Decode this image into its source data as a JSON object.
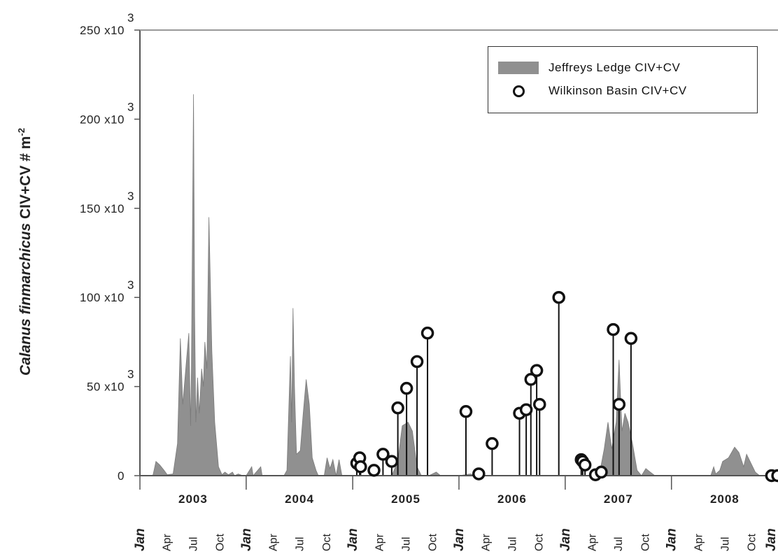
{
  "chart_data": {
    "type": "area",
    "ylabel": "Calanus finmarchicus CIV+CV # m-2",
    "ylabel_species": "Calanus finmarchicus",
    "ylabel_rest": " CIV+CV # m",
    "ylabel_exp": "-2",
    "ylim": [
      0,
      250000
    ],
    "yticks": [
      {
        "value": 0,
        "base": "0",
        "exp": ""
      },
      {
        "value": 50000,
        "base": "50 x10",
        "exp": "3"
      },
      {
        "value": 100000,
        "base": "100 x10",
        "exp": "3"
      },
      {
        "value": 150000,
        "base": "150 x10",
        "exp": "3"
      },
      {
        "value": 200000,
        "base": "200 x10",
        "exp": "3"
      },
      {
        "value": 250000,
        "base": "250 x10",
        "exp": "3"
      }
    ],
    "xlim": [
      "2003-01-01",
      "2009-01-01"
    ],
    "years": [
      "2003",
      "2004",
      "2005",
      "2006",
      "2007",
      "2008"
    ],
    "month_labels": [
      "Jan",
      "Apr",
      "Jul",
      "Oct"
    ],
    "last_label": "Jan",
    "legend_position": "top-right",
    "series": [
      {
        "name": "Jeffreys Ledge CIV+CV",
        "type": "area",
        "color": "#909090",
        "points": [
          [
            "2003-01-01",
            0
          ],
          [
            "2003-02-01",
            0
          ],
          [
            "2003-02-15",
            300
          ],
          [
            "2003-02-25",
            8000
          ],
          [
            "2003-03-10",
            6000
          ],
          [
            "2003-03-25",
            3000
          ],
          [
            "2003-04-05",
            500
          ],
          [
            "2003-04-25",
            1000
          ],
          [
            "2003-05-10",
            18000
          ],
          [
            "2003-05-20",
            77000
          ],
          [
            "2003-05-28",
            40000
          ],
          [
            "2003-06-10",
            65000
          ],
          [
            "2003-06-18",
            80000
          ],
          [
            "2003-06-24",
            28000
          ],
          [
            "2003-06-27",
            60000
          ],
          [
            "2003-07-04",
            214000
          ],
          [
            "2003-07-08",
            90000
          ],
          [
            "2003-07-12",
            30000
          ],
          [
            "2003-07-18",
            55000
          ],
          [
            "2003-07-24",
            35000
          ],
          [
            "2003-08-01",
            60000
          ],
          [
            "2003-08-07",
            50000
          ],
          [
            "2003-08-12",
            75000
          ],
          [
            "2003-08-19",
            60000
          ],
          [
            "2003-08-26",
            145000
          ],
          [
            "2003-09-05",
            70000
          ],
          [
            "2003-09-15",
            30000
          ],
          [
            "2003-09-28",
            5000
          ],
          [
            "2003-10-10",
            500
          ],
          [
            "2003-10-20",
            2000
          ],
          [
            "2003-11-01",
            500
          ],
          [
            "2003-11-15",
            2000
          ],
          [
            "2003-11-22",
            0
          ],
          [
            "2003-12-05",
            1000
          ],
          [
            "2003-12-20",
            0
          ],
          [
            "2004-01-01",
            0
          ],
          [
            "2004-01-20",
            5000
          ],
          [
            "2004-01-25",
            0
          ],
          [
            "2004-02-20",
            5000
          ],
          [
            "2004-02-25",
            0
          ],
          [
            "2004-04-01",
            0
          ],
          [
            "2004-05-10",
            0
          ],
          [
            "2004-05-20",
            3000
          ],
          [
            "2004-06-01",
            67000
          ],
          [
            "2004-06-05",
            30000
          ],
          [
            "2004-06-10",
            94000
          ],
          [
            "2004-06-15",
            50000
          ],
          [
            "2004-06-22",
            12000
          ],
          [
            "2004-07-05",
            14000
          ],
          [
            "2004-07-15",
            35000
          ],
          [
            "2004-07-25",
            54000
          ],
          [
            "2004-08-05",
            40000
          ],
          [
            "2004-08-15",
            10000
          ],
          [
            "2004-08-28",
            3000
          ],
          [
            "2004-09-05",
            0
          ],
          [
            "2004-09-25",
            0
          ],
          [
            "2004-10-05",
            10000
          ],
          [
            "2004-10-15",
            4000
          ],
          [
            "2004-10-25",
            9000
          ],
          [
            "2004-11-05",
            0
          ],
          [
            "2004-11-15",
            9000
          ],
          [
            "2004-11-25",
            0
          ],
          [
            "2004-12-31",
            0
          ],
          [
            "2005-05-15",
            0
          ],
          [
            "2005-06-05",
            8000
          ],
          [
            "2005-06-20",
            28000
          ],
          [
            "2005-07-10",
            30000
          ],
          [
            "2005-07-25",
            25000
          ],
          [
            "2005-08-10",
            5000
          ],
          [
            "2005-08-25",
            0
          ],
          [
            "2005-09-20",
            0
          ],
          [
            "2005-10-15",
            2000
          ],
          [
            "2005-10-30",
            0
          ],
          [
            "2006-01-01",
            0
          ],
          [
            "2006-02-10",
            1000
          ],
          [
            "2006-03-01",
            0
          ],
          [
            "2006-12-31",
            0
          ],
          [
            "2007-04-15",
            0
          ],
          [
            "2007-05-01",
            3000
          ],
          [
            "2007-05-15",
            15000
          ],
          [
            "2007-05-28",
            30000
          ],
          [
            "2007-06-10",
            15000
          ],
          [
            "2007-06-25",
            30000
          ],
          [
            "2007-07-05",
            65000
          ],
          [
            "2007-07-15",
            25000
          ],
          [
            "2007-07-25",
            35000
          ],
          [
            "2007-08-05",
            30000
          ],
          [
            "2007-08-20",
            18000
          ],
          [
            "2007-09-05",
            3000
          ],
          [
            "2007-09-20",
            0
          ],
          [
            "2007-10-05",
            4000
          ],
          [
            "2007-10-20",
            2000
          ],
          [
            "2007-11-05",
            0
          ],
          [
            "2008-05-15",
            0
          ],
          [
            "2008-05-25",
            5000
          ],
          [
            "2008-06-01",
            1000
          ],
          [
            "2008-06-15",
            3000
          ],
          [
            "2008-06-25",
            8000
          ],
          [
            "2008-07-15",
            10000
          ],
          [
            "2008-08-05",
            16000
          ],
          [
            "2008-08-20",
            13000
          ],
          [
            "2008-09-05",
            5000
          ],
          [
            "2008-09-15",
            12000
          ],
          [
            "2008-09-30",
            7000
          ],
          [
            "2008-10-15",
            2000
          ],
          [
            "2008-10-30",
            0
          ],
          [
            "2009-01-01",
            0
          ]
        ]
      },
      {
        "name": "Wilkinson Basin CIV+CV",
        "type": "stem",
        "color": "#111111",
        "points": [
          [
            "2005-01-15",
            7000
          ],
          [
            "2005-01-25",
            10000
          ],
          [
            "2005-01-28",
            5000
          ],
          [
            "2005-03-15",
            3000
          ],
          [
            "2005-04-15",
            12000
          ],
          [
            "2005-05-15",
            8000
          ],
          [
            "2005-06-05",
            38000
          ],
          [
            "2005-07-05",
            49000
          ],
          [
            "2005-08-10",
            64000
          ],
          [
            "2005-09-15",
            80000
          ],
          [
            "2006-01-25",
            36000
          ],
          [
            "2006-03-10",
            1000
          ],
          [
            "2006-04-25",
            18000
          ],
          [
            "2006-07-28",
            35000
          ],
          [
            "2006-08-20",
            37000
          ],
          [
            "2006-09-05",
            54000
          ],
          [
            "2006-09-25",
            59000
          ],
          [
            "2006-10-05",
            40000
          ],
          [
            "2006-12-10",
            100000
          ],
          [
            "2007-02-25",
            9000
          ],
          [
            "2007-03-02",
            8000
          ],
          [
            "2007-03-10",
            6000
          ],
          [
            "2007-04-15",
            500
          ],
          [
            "2007-05-05",
            2000
          ],
          [
            "2007-06-15",
            82000
          ],
          [
            "2007-07-05",
            40000
          ],
          [
            "2007-08-15",
            77000
          ],
          [
            "2008-12-10",
            0
          ],
          [
            "2008-12-31",
            0
          ]
        ]
      }
    ]
  }
}
